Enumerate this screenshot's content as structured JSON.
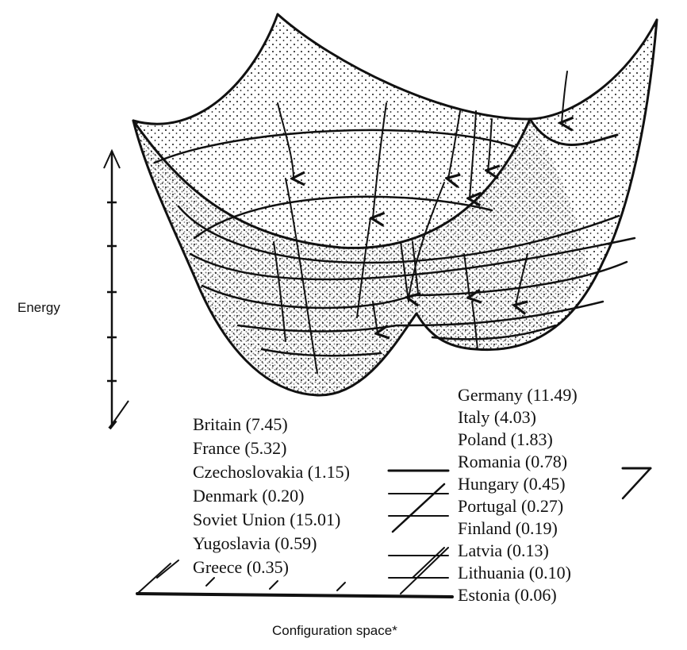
{
  "axes": {
    "y_label": "Energy",
    "x_label": "Configuration space*"
  },
  "left_group": [
    {
      "name": "Britain",
      "value": "7.45",
      "text": "Britain (7.45)"
    },
    {
      "name": "France",
      "value": "5.32",
      "text": "France (5.32)"
    },
    {
      "name": "Czechoslovakia",
      "value": "1.15",
      "text": "Czechoslovakia (1.15)"
    },
    {
      "name": "Denmark",
      "value": "0.20",
      "text": "Denmark (0.20)"
    },
    {
      "name": "Soviet Union",
      "value": "15.01",
      "text": "Soviet Union (15.01)"
    },
    {
      "name": "Yugoslavia",
      "value": "0.59",
      "text": "Yugoslavia (0.59)"
    },
    {
      "name": "Greece",
      "value": "0.35",
      "text": "Greece (0.35)"
    }
  ],
  "right_group": [
    {
      "name": "Germany",
      "value": "11.49",
      "text": "Germany (11.49)"
    },
    {
      "name": "Italy",
      "value": "4.03",
      "text": "Italy (4.03)"
    },
    {
      "name": "Poland",
      "value": "1.83",
      "text": "Poland (1.83)"
    },
    {
      "name": "Romania",
      "value": "0.78",
      "text": "Romania (0.78)"
    },
    {
      "name": "Hungary",
      "value": "0.45",
      "text": "Hungary (0.45)"
    },
    {
      "name": "Portugal",
      "value": "0.27",
      "text": "Portugal (0.27)"
    },
    {
      "name": "Finland",
      "value": "0.19",
      "text": "Finland (0.19)"
    },
    {
      "name": "Latvia",
      "value": "0.13",
      "text": "Latvia (0.13)"
    },
    {
      "name": "Lithuania",
      "value": "0.10",
      "text": "Lithuania (0.10)"
    },
    {
      "name": "Estonia",
      "value": "0.06",
      "text": "Estonia (0.06)"
    }
  ],
  "colors": {
    "ink": "#111111",
    "background": "#ffffff"
  }
}
